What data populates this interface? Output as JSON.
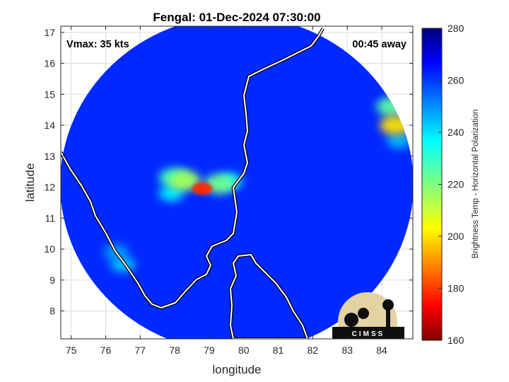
{
  "chart_data": {
    "type": "heatmap",
    "title": "Fengal: 01-Dec-2024 07:30:00",
    "xlabel": "longitude",
    "ylabel": "latitude",
    "xlim": [
      74.7,
      84.9
    ],
    "ylim": [
      7.1,
      17.2
    ],
    "xticks": [
      75,
      76,
      77,
      78,
      79,
      80,
      81,
      82,
      83,
      84
    ],
    "yticks": [
      8,
      9,
      10,
      11,
      12,
      13,
      14,
      15,
      16,
      17
    ],
    "grid": true,
    "annotations": {
      "vmax": "Vmax: 35 kts",
      "time_offset": "00:45 away"
    },
    "colorbar": {
      "label": "Brightness Temp - Horizontal Polarization",
      "range": [
        160,
        280
      ],
      "ticks": [
        160,
        180,
        200,
        220,
        240,
        260,
        280
      ],
      "colormap": "jet"
    },
    "swath": {
      "center_lon": 79.8,
      "center_lat": 12.1,
      "background_value": 262
    },
    "features": [
      {
        "lon": 78.8,
        "lat": 11.95,
        "value": 178
      },
      {
        "lon": 78.3,
        "lat": 12.2,
        "value": 215
      },
      {
        "lon": 79.3,
        "lat": 12.1,
        "value": 222
      },
      {
        "lon": 78.0,
        "lat": 12.3,
        "value": 228
      },
      {
        "lon": 79.6,
        "lat": 12.2,
        "value": 235
      },
      {
        "lon": 77.9,
        "lat": 11.8,
        "value": 238
      },
      {
        "lon": 84.4,
        "lat": 14.0,
        "value": 200
      },
      {
        "lon": 84.3,
        "lat": 14.6,
        "value": 225
      },
      {
        "lon": 84.5,
        "lat": 13.5,
        "value": 245
      },
      {
        "lon": 76.5,
        "lat": 9.5,
        "value": 243
      },
      {
        "lon": 76.3,
        "lat": 9.9,
        "value": 248
      }
    ],
    "logo": "CIMSS"
  }
}
